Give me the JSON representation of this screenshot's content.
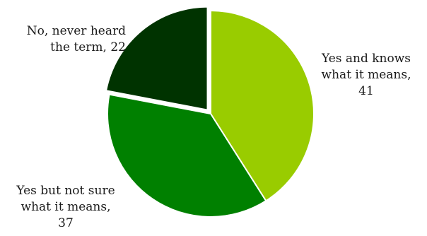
{
  "chart_data": {
    "type": "pie",
    "title": "",
    "slices": [
      {
        "label_lines": [
          "Yes and knows",
          "what it means,",
          "41"
        ],
        "value": 41,
        "color": "#99cc00"
      },
      {
        "label_lines": [
          "Yes but not sure",
          "what it means,",
          "37"
        ],
        "value": 37,
        "color": "#008000"
      },
      {
        "label_lines": [
          "No, never heard",
          "the term, 22"
        ],
        "value": 22,
        "color": "#003300",
        "exploded": true
      }
    ],
    "legend": "none",
    "start_angle": "12 o'clock",
    "direction": "clockwise"
  }
}
